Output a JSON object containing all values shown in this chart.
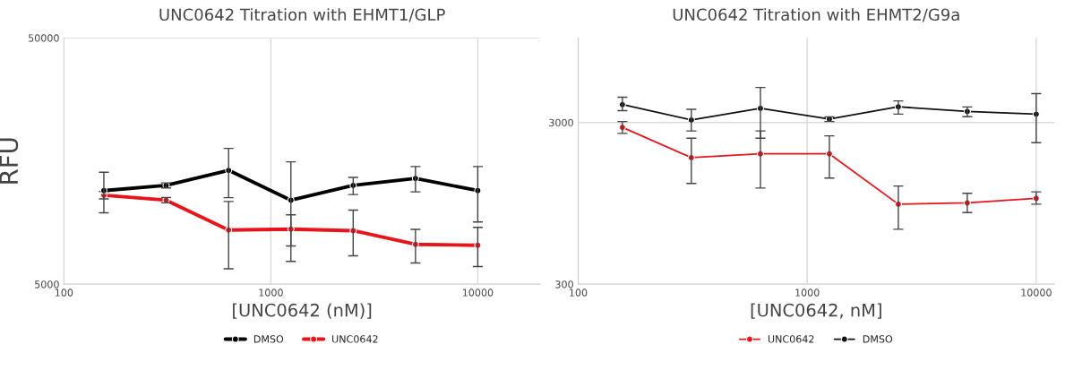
{
  "chart_data": [
    {
      "type": "line",
      "title": "UNC0642 Titration with EHMT1/GLP",
      "xlabel": "[UNC0642 (nM)]",
      "ylabel": "RFU",
      "log": "xy",
      "xlim": [
        100,
        20000
      ],
      "xticks": [
        100,
        1000,
        10000
      ],
      "ylim": [
        5000,
        50000
      ],
      "yticks": [
        5000,
        50000
      ],
      "grid": true,
      "legend": "bottom",
      "marker": "circle",
      "line_style": "solid",
      "x": [
        156,
        312,
        625,
        1250,
        2500,
        5000,
        10000
      ],
      "series": [
        {
          "name": "DMSO",
          "color": "#000000",
          "values": [
            12000,
            12600,
            14500,
            10970,
            12600,
            13450,
            12000
          ],
          "errors": [
            [
              9750,
              14250
            ],
            [
              12300,
              12900
            ],
            [
              11230,
              17800
            ],
            [
              6190,
              15700
            ],
            [
              11560,
              13570
            ],
            [
              11860,
              15030
            ],
            [
              8950,
              15030
            ]
          ]
        },
        {
          "name": "UNC0642",
          "color": "#e8141c",
          "values": [
            11490,
            10970,
            8300,
            8370,
            8250,
            7260,
            7200
          ],
          "errors": [
            [
              11100,
              11900
            ],
            [
              10700,
              11250
            ],
            [
              5780,
              10840
            ],
            [
              7150,
              9570
            ],
            [
              6520,
              10000
            ],
            [
              6100,
              8350
            ],
            [
              5900,
              8510
            ]
          ]
        }
      ]
    },
    {
      "type": "line",
      "title": "UNC0642 Titration with EHMT2/G9a",
      "xlabel": "[UNC0642, nM]",
      "log": "xy",
      "xlim": [
        100,
        12000
      ],
      "xticks": [
        100,
        1000,
        10000
      ],
      "ylim": [
        300,
        10000
      ],
      "yticks": [
        300,
        3000
      ],
      "grid": true,
      "legend": "bottom",
      "marker": "circle",
      "line_style": "solid",
      "x": [
        156,
        312,
        625,
        1250,
        2500,
        5000,
        10000
      ],
      "series": [
        {
          "name": "UNC0642",
          "color": "#e8141c",
          "values": [
            2800,
            1820,
            1920,
            1920,
            938,
            955,
            1020
          ],
          "errors": [
            [
              2570,
              3040
            ],
            [
              1260,
              2400
            ],
            [
              1180,
              2660
            ],
            [
              1360,
              2480
            ],
            [
              656,
              1215
            ],
            [
              832,
              1095
            ],
            [
              938,
              1117
            ]
          ]
        },
        {
          "name": "DMSO",
          "color": "#111111",
          "values": [
            3870,
            3110,
            3670,
            3150,
            3750,
            3510,
            3380
          ],
          "errors": [
            [
              3550,
              4300
            ],
            [
              2660,
              3620
            ],
            [
              2400,
              4940
            ],
            [
              3040,
              3250
            ],
            [
              3380,
              4080
            ],
            [
              3260,
              3740
            ],
            [
              2250,
              4520
            ]
          ]
        }
      ]
    }
  ]
}
